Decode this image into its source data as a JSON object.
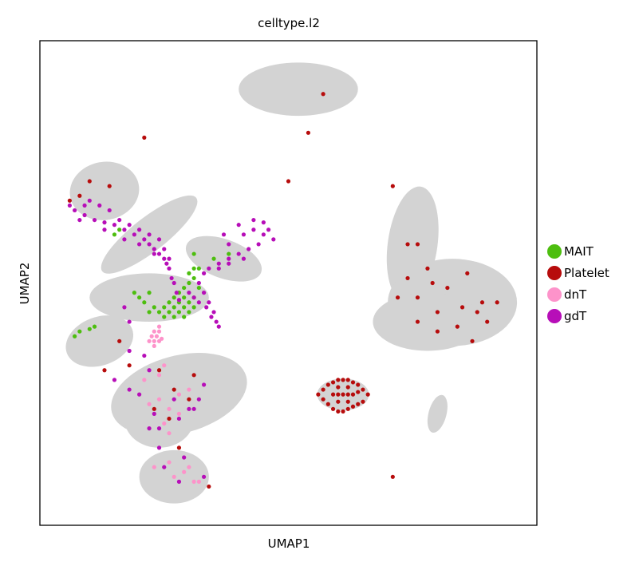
{
  "chart_data": {
    "type": "scatter",
    "title": "celltype.l2",
    "xlabel": "UMAP1",
    "ylabel": "UMAP2",
    "xlim": [
      0,
      100
    ],
    "ylim": [
      0,
      100
    ],
    "grid": false,
    "ticks": false,
    "legend_placement": "right",
    "background_color": "#d3d3d3",
    "background_regions": [
      {
        "cx": 52,
        "cy": 90,
        "rx": 12,
        "ry": 5.5,
        "rot": 0
      },
      {
        "cx": 13,
        "cy": 69,
        "rx": 7,
        "ry": 6,
        "rot": -10
      },
      {
        "cx": 22,
        "cy": 60,
        "rx": 12,
        "ry": 3.5,
        "rot": -38
      },
      {
        "cx": 37,
        "cy": 55,
        "rx": 8,
        "ry": 4,
        "rot": 20
      },
      {
        "cx": 22,
        "cy": 47,
        "rx": 12,
        "ry": 5,
        "rot": 0
      },
      {
        "cx": 12,
        "cy": 38,
        "rx": 7,
        "ry": 5,
        "rot": -20
      },
      {
        "cx": 28,
        "cy": 27,
        "rx": 14,
        "ry": 8,
        "rot": -15
      },
      {
        "cx": 24,
        "cy": 22,
        "rx": 7,
        "ry": 6,
        "rot": 0
      },
      {
        "cx": 27,
        "cy": 10,
        "rx": 7,
        "ry": 5.5,
        "rot": 0
      },
      {
        "cx": 75,
        "cy": 58,
        "rx": 5,
        "ry": 12,
        "rot": 8
      },
      {
        "cx": 83,
        "cy": 46,
        "rx": 13,
        "ry": 9,
        "rot": 0
      },
      {
        "cx": 78,
        "cy": 42,
        "rx": 11,
        "ry": 6,
        "rot": 0
      },
      {
        "cx": 80,
        "cy": 23,
        "rx": 1.8,
        "ry": 4,
        "rot": 15
      },
      {
        "cx": 61,
        "cy": 27,
        "rx": 5.2,
        "ry": 3.3,
        "rot": 0
      }
    ],
    "series": [
      {
        "name": "MAIT",
        "color": "#4dbe0f",
        "points": [
          [
            24,
            44
          ],
          [
            25,
            45
          ],
          [
            26,
            44
          ],
          [
            27,
            45
          ],
          [
            28,
            46
          ],
          [
            29,
            45
          ],
          [
            30,
            44
          ],
          [
            26,
            46
          ],
          [
            27,
            47
          ],
          [
            28,
            48
          ],
          [
            29,
            47
          ],
          [
            30,
            46
          ],
          [
            31,
            47
          ],
          [
            29,
            49
          ],
          [
            30,
            50
          ],
          [
            31,
            51
          ],
          [
            30,
            52
          ],
          [
            31,
            53
          ],
          [
            32,
            53
          ],
          [
            28,
            44
          ],
          [
            23,
            45
          ],
          [
            22,
            44
          ],
          [
            21,
            46
          ],
          [
            20,
            47
          ],
          [
            22,
            48
          ],
          [
            25,
            43
          ],
          [
            27,
            43
          ],
          [
            29,
            43
          ],
          [
            31,
            45
          ],
          [
            32,
            49
          ],
          [
            7,
            39
          ],
          [
            8,
            40
          ],
          [
            10,
            40.5
          ],
          [
            11,
            41
          ],
          [
            15,
            60
          ],
          [
            16,
            61
          ],
          [
            31,
            56
          ],
          [
            35,
            55
          ],
          [
            38,
            56
          ],
          [
            19,
            48
          ]
        ]
      },
      {
        "name": "Platelet",
        "color": "#b70c0c",
        "points": [
          [
            56,
            27
          ],
          [
            57,
            28
          ],
          [
            58,
            29
          ],
          [
            59,
            29.5
          ],
          [
            60,
            30
          ],
          [
            61,
            30
          ],
          [
            62,
            30
          ],
          [
            63,
            29.5
          ],
          [
            64,
            29
          ],
          [
            65,
            28
          ],
          [
            66,
            27
          ],
          [
            65,
            25.5
          ],
          [
            64,
            25
          ],
          [
            63,
            24.5
          ],
          [
            62,
            24
          ],
          [
            61,
            23.5
          ],
          [
            60,
            23.5
          ],
          [
            59,
            24
          ],
          [
            58,
            25
          ],
          [
            57,
            26
          ],
          [
            59,
            27
          ],
          [
            60,
            27
          ],
          [
            61,
            27
          ],
          [
            62,
            27
          ],
          [
            63,
            27
          ],
          [
            60,
            28.5
          ],
          [
            62,
            28.5
          ],
          [
            60,
            25.5
          ],
          [
            62,
            25.5
          ],
          [
            64,
            27.5
          ],
          [
            57,
            89
          ],
          [
            54,
            81
          ],
          [
            50,
            71
          ],
          [
            21,
            80
          ],
          [
            8,
            68
          ],
          [
            10,
            71
          ],
          [
            14,
            70
          ],
          [
            6,
            67
          ],
          [
            71,
            70
          ],
          [
            76,
            58
          ],
          [
            78,
            53
          ],
          [
            74,
            51
          ],
          [
            79,
            50
          ],
          [
            82,
            49
          ],
          [
            86,
            52
          ],
          [
            89,
            46
          ],
          [
            76,
            47
          ],
          [
            80,
            44
          ],
          [
            85,
            45
          ],
          [
            88,
            44
          ],
          [
            92,
            46
          ],
          [
            90,
            42
          ],
          [
            76,
            42
          ],
          [
            80,
            40
          ],
          [
            84,
            41
          ],
          [
            87,
            38
          ],
          [
            72,
            47
          ],
          [
            74,
            58
          ],
          [
            71,
            10
          ],
          [
            16,
            38
          ],
          [
            13,
            32
          ],
          [
            18,
            33
          ],
          [
            24,
            32
          ],
          [
            27,
            28
          ],
          [
            30,
            26
          ],
          [
            23,
            24
          ],
          [
            26,
            22
          ],
          [
            31,
            31
          ],
          [
            28,
            16
          ],
          [
            34,
            8
          ]
        ]
      },
      {
        "name": "dnT",
        "color": "#fd93ca",
        "points": [
          [
            23,
            40
          ],
          [
            23.5,
            39
          ],
          [
            24,
            38
          ],
          [
            23,
            38
          ],
          [
            22.5,
            39
          ],
          [
            24,
            40
          ],
          [
            23,
            37
          ],
          [
            22,
            38
          ],
          [
            24,
            41
          ],
          [
            24.5,
            38.5
          ],
          [
            22,
            25
          ],
          [
            24,
            26
          ],
          [
            26,
            24
          ],
          [
            28,
            23
          ],
          [
            25,
            21
          ],
          [
            26,
            19
          ],
          [
            29,
            11
          ],
          [
            30,
            12
          ],
          [
            27,
            10
          ],
          [
            31,
            9
          ],
          [
            28,
            27
          ],
          [
            21,
            30
          ],
          [
            24,
            31
          ],
          [
            30,
            28
          ],
          [
            26,
            13
          ],
          [
            23,
            12
          ],
          [
            32,
            9
          ],
          [
            25,
            33
          ]
        ]
      },
      {
        "name": "gdT",
        "color": "#b70eb8",
        "points": [
          [
            7,
            65
          ],
          [
            9,
            64
          ],
          [
            11,
            63
          ],
          [
            13,
            62.5
          ],
          [
            15,
            62
          ],
          [
            17,
            61
          ],
          [
            19,
            60
          ],
          [
            21,
            59
          ],
          [
            22,
            58
          ],
          [
            23,
            57
          ],
          [
            24,
            56
          ],
          [
            25,
            55
          ],
          [
            25.5,
            54
          ],
          [
            26,
            53
          ],
          [
            26.5,
            51
          ],
          [
            27,
            50
          ],
          [
            27.5,
            48
          ],
          [
            28,
            46.5
          ],
          [
            30,
            48
          ],
          [
            32,
            50
          ],
          [
            33,
            52
          ],
          [
            34,
            53
          ],
          [
            36,
            54
          ],
          [
            38,
            55
          ],
          [
            40,
            56
          ],
          [
            42,
            57
          ],
          [
            44,
            58
          ],
          [
            45,
            60
          ],
          [
            43,
            61
          ],
          [
            41,
            60
          ],
          [
            38,
            58
          ],
          [
            33,
            48
          ],
          [
            34,
            46
          ],
          [
            35,
            44
          ],
          [
            35.5,
            42
          ],
          [
            36,
            41
          ],
          [
            34.5,
            43
          ],
          [
            33.5,
            45
          ],
          [
            10,
            67
          ],
          [
            12,
            66
          ],
          [
            14,
            65
          ],
          [
            16,
            63
          ],
          [
            18,
            62
          ],
          [
            20,
            61
          ],
          [
            22,
            60
          ],
          [
            24,
            59
          ],
          [
            25,
            57
          ],
          [
            26,
            55
          ],
          [
            20,
            58
          ],
          [
            23,
            56
          ],
          [
            37,
            60
          ],
          [
            40,
            62
          ],
          [
            43,
            63
          ],
          [
            46,
            61
          ],
          [
            38,
            54
          ],
          [
            41,
            55
          ],
          [
            36,
            53
          ],
          [
            31,
            47
          ],
          [
            32,
            46
          ],
          [
            17,
            59
          ],
          [
            8,
            63
          ],
          [
            6,
            66
          ],
          [
            9,
            66
          ],
          [
            13,
            61
          ],
          [
            45,
            62.5
          ],
          [
            47,
            59
          ],
          [
            15,
            30
          ],
          [
            18,
            28
          ],
          [
            20,
            27
          ],
          [
            23,
            23
          ],
          [
            24,
            20
          ],
          [
            28,
            22
          ],
          [
            30,
            24
          ],
          [
            32,
            26
          ],
          [
            27,
            26
          ],
          [
            22,
            32
          ],
          [
            18,
            36
          ],
          [
            17,
            45
          ],
          [
            18,
            42
          ],
          [
            21,
            35
          ],
          [
            25,
            12
          ],
          [
            28,
            9
          ],
          [
            29,
            14
          ],
          [
            33,
            10
          ],
          [
            24,
            16
          ],
          [
            31,
            24
          ],
          [
            33,
            29
          ],
          [
            22,
            20
          ]
        ]
      }
    ]
  }
}
